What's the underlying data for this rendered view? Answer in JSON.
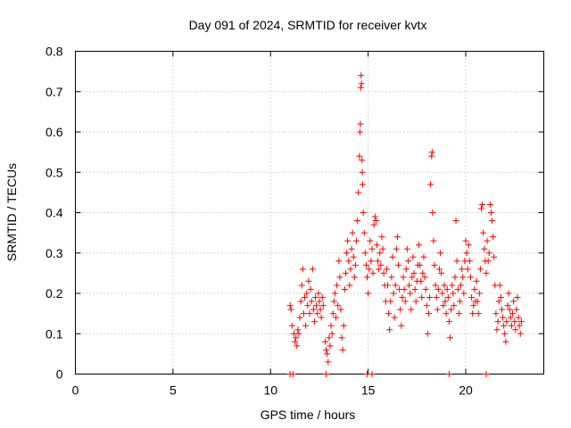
{
  "chart_data": {
    "type": "scatter",
    "title": "Day 091 of 2024, SRMTID for receiver kvtx",
    "xlabel": "GPS time / hours",
    "ylabel": "SRMTID / TECUs",
    "xlim": [
      0,
      24
    ],
    "ylim": [
      0,
      0.8
    ],
    "xticks": [
      0,
      5,
      10,
      15,
      20
    ],
    "yticks": [
      0,
      0.1,
      0.2,
      0.3,
      0.4,
      0.5,
      0.6,
      0.7,
      0.8
    ],
    "ytick_labels": [
      "0",
      "0.1",
      "0.2",
      "0.3",
      "0.4",
      "0.5",
      "0.6",
      "0.7",
      "0.8"
    ],
    "grid": true,
    "marker": "+",
    "marker_color": "#ff0000",
    "series": [
      {
        "name": "SRMTID",
        "points": [
          [
            11.0,
            0.17
          ],
          [
            11.05,
            0.16
          ],
          [
            11.1,
            0.12
          ],
          [
            11.2,
            0.1
          ],
          [
            11.25,
            0.08
          ],
          [
            11.3,
            0.09
          ],
          [
            11.35,
            0.07
          ],
          [
            11.4,
            0.11
          ],
          [
            11.45,
            0.1
          ],
          [
            11.5,
            0.14
          ],
          [
            11.55,
            0.18
          ],
          [
            11.6,
            0.22
          ],
          [
            11.65,
            0.26
          ],
          [
            11.7,
            0.15
          ],
          [
            11.75,
            0.19
          ],
          [
            11.8,
            0.12
          ],
          [
            11.85,
            0.2
          ],
          [
            11.9,
            0.17
          ],
          [
            11.95,
            0.23
          ],
          [
            12.0,
            0.15
          ],
          [
            12.05,
            0.21
          ],
          [
            12.1,
            0.18
          ],
          [
            12.15,
            0.26
          ],
          [
            12.2,
            0.16
          ],
          [
            12.25,
            0.13
          ],
          [
            12.3,
            0.19
          ],
          [
            12.35,
            0.17
          ],
          [
            12.4,
            0.15
          ],
          [
            12.45,
            0.2
          ],
          [
            12.5,
            0.18
          ],
          [
            12.55,
            0.16
          ],
          [
            12.6,
            0.14
          ],
          [
            12.65,
            0.19
          ],
          [
            12.7,
            0.17
          ],
          [
            12.8,
            0.08
          ],
          [
            12.85,
            0.06
          ],
          [
            12.9,
            0.05
          ],
          [
            12.95,
            0.03
          ],
          [
            13.0,
            0.09
          ],
          [
            13.05,
            0.07
          ],
          [
            13.1,
            0.12
          ],
          [
            13.15,
            0.1
          ],
          [
            13.2,
            0.15
          ],
          [
            13.25,
            0.18
          ],
          [
            13.3,
            0.2
          ],
          [
            13.35,
            0.14
          ],
          [
            13.4,
            0.22
          ],
          [
            13.45,
            0.17
          ],
          [
            13.5,
            0.28
          ],
          [
            13.55,
            0.24
          ],
          [
            13.6,
            0.16
          ],
          [
            13.65,
            0.09
          ],
          [
            13.7,
            0.06
          ],
          [
            13.75,
            0.12
          ],
          [
            13.8,
            0.21
          ],
          [
            13.85,
            0.25
          ],
          [
            13.9,
            0.3
          ],
          [
            13.95,
            0.33
          ],
          [
            14.0,
            0.28
          ],
          [
            14.05,
            0.22
          ],
          [
            14.1,
            0.26
          ],
          [
            14.15,
            0.31
          ],
          [
            14.2,
            0.35
          ],
          [
            14.25,
            0.29
          ],
          [
            14.3,
            0.24
          ],
          [
            14.35,
            0.27
          ],
          [
            14.4,
            0.33
          ],
          [
            14.45,
            0.38
          ],
          [
            14.5,
            0.45
          ],
          [
            14.55,
            0.54
          ],
          [
            14.58,
            0.6
          ],
          [
            14.6,
            0.62
          ],
          [
            14.62,
            0.71
          ],
          [
            14.64,
            0.74
          ],
          [
            14.66,
            0.72
          ],
          [
            14.68,
            0.53
          ],
          [
            14.7,
            0.5
          ],
          [
            14.72,
            0.47
          ],
          [
            14.75,
            0.4
          ],
          [
            14.8,
            0.35
          ],
          [
            14.85,
            0.3
          ],
          [
            14.9,
            0.27
          ],
          [
            14.95,
            0.24
          ],
          [
            15.0,
            0.2
          ],
          [
            15.05,
            0.26
          ],
          [
            15.1,
            0.33
          ],
          [
            15.15,
            0.28
          ],
          [
            15.2,
            0.31
          ],
          [
            15.25,
            0.25
          ],
          [
            15.3,
            0.37
          ],
          [
            15.35,
            0.39
          ],
          [
            15.4,
            0.38
          ],
          [
            15.45,
            0.32
          ],
          [
            15.5,
            0.28
          ],
          [
            15.55,
            0.26
          ],
          [
            15.6,
            0.3
          ],
          [
            15.65,
            0.27
          ],
          [
            15.7,
            0.34
          ],
          [
            15.75,
            0.31
          ],
          [
            15.8,
            0.25
          ],
          [
            15.85,
            0.22
          ],
          [
            15.9,
            0.18
          ],
          [
            15.95,
            0.26
          ],
          [
            16.0,
            0.22
          ],
          [
            16.05,
            0.15
          ],
          [
            16.1,
            0.11
          ],
          [
            16.15,
            0.18
          ],
          [
            16.2,
            0.24
          ],
          [
            16.25,
            0.29
          ],
          [
            16.3,
            0.2
          ],
          [
            16.35,
            0.14
          ],
          [
            16.4,
            0.22
          ],
          [
            16.45,
            0.31
          ],
          [
            16.5,
            0.34
          ],
          [
            16.55,
            0.27
          ],
          [
            16.6,
            0.21
          ],
          [
            16.65,
            0.16
          ],
          [
            16.7,
            0.12
          ],
          [
            16.75,
            0.19
          ],
          [
            16.8,
            0.24
          ],
          [
            16.85,
            0.21
          ],
          [
            16.9,
            0.18
          ],
          [
            16.95,
            0.26
          ],
          [
            17.0,
            0.31
          ],
          [
            17.05,
            0.28
          ],
          [
            17.1,
            0.22
          ],
          [
            17.15,
            0.2
          ],
          [
            17.2,
            0.16
          ],
          [
            17.25,
            0.24
          ],
          [
            17.3,
            0.29
          ],
          [
            17.35,
            0.25
          ],
          [
            17.4,
            0.21
          ],
          [
            17.45,
            0.18
          ],
          [
            17.5,
            0.23
          ],
          [
            17.55,
            0.27
          ],
          [
            17.6,
            0.32
          ],
          [
            17.65,
            0.27
          ],
          [
            17.7,
            0.23
          ],
          [
            17.75,
            0.19
          ],
          [
            17.8,
            0.25
          ],
          [
            17.85,
            0.29
          ],
          [
            17.9,
            0.24
          ],
          [
            17.95,
            0.21
          ],
          [
            18.0,
            0.17
          ],
          [
            18.05,
            0.1
          ],
          [
            18.1,
            0.15
          ],
          [
            18.15,
            0.19
          ],
          [
            18.2,
            0.47
          ],
          [
            18.25,
            0.54
          ],
          [
            18.28,
            0.55
          ],
          [
            18.3,
            0.4
          ],
          [
            18.35,
            0.33
          ],
          [
            18.4,
            0.27
          ],
          [
            18.45,
            0.22
          ],
          [
            18.5,
            0.19
          ],
          [
            18.55,
            0.16
          ],
          [
            18.6,
            0.21
          ],
          [
            18.65,
            0.26
          ],
          [
            18.7,
            0.3
          ],
          [
            18.75,
            0.25
          ],
          [
            18.8,
            0.2
          ],
          [
            18.85,
            0.17
          ],
          [
            18.9,
            0.22
          ],
          [
            18.95,
            0.18
          ],
          [
            19.0,
            0.15
          ],
          [
            19.05,
            0.21
          ],
          [
            19.1,
            0.19
          ],
          [
            19.15,
            0.13
          ],
          [
            19.2,
            0.09
          ],
          [
            19.25,
            0.16
          ],
          [
            19.3,
            0.22
          ],
          [
            19.35,
            0.2
          ],
          [
            19.4,
            0.17
          ],
          [
            19.45,
            0.24
          ],
          [
            19.5,
            0.38
          ],
          [
            19.55,
            0.28
          ],
          [
            19.6,
            0.21
          ],
          [
            19.65,
            0.15
          ],
          [
            19.7,
            0.18
          ],
          [
            19.75,
            0.22
          ],
          [
            19.8,
            0.26
          ],
          [
            19.85,
            0.24
          ],
          [
            19.9,
            0.2
          ],
          [
            19.95,
            0.28
          ],
          [
            20.0,
            0.33
          ],
          [
            20.05,
            0.3
          ],
          [
            20.1,
            0.26
          ],
          [
            20.15,
            0.32
          ],
          [
            20.2,
            0.28
          ],
          [
            20.25,
            0.24
          ],
          [
            20.3,
            0.19
          ],
          [
            20.35,
            0.15
          ],
          [
            20.4,
            0.17
          ],
          [
            20.45,
            0.21
          ],
          [
            20.5,
            0.18
          ],
          [
            20.55,
            0.23
          ],
          [
            20.6,
            0.18
          ],
          [
            20.65,
            0.15
          ],
          [
            20.7,
            0.2
          ],
          [
            20.75,
            0.26
          ],
          [
            20.8,
            0.41
          ],
          [
            20.85,
            0.42
          ],
          [
            20.9,
            0.35
          ],
          [
            20.95,
            0.31
          ],
          [
            21.0,
            0.28
          ],
          [
            21.05,
            0.25
          ],
          [
            21.1,
            0.33
          ],
          [
            21.15,
            0.28
          ],
          [
            21.2,
            0.3
          ],
          [
            21.25,
            0.42
          ],
          [
            21.3,
            0.4
          ],
          [
            21.35,
            0.38
          ],
          [
            21.4,
            0.34
          ],
          [
            21.45,
            0.29
          ],
          [
            21.5,
            0.22
          ],
          [
            21.55,
            0.15
          ],
          [
            21.6,
            0.11
          ],
          [
            21.65,
            0.13
          ],
          [
            21.7,
            0.18
          ],
          [
            21.75,
            0.22
          ],
          [
            21.8,
            0.19
          ],
          [
            21.85,
            0.16
          ],
          [
            21.9,
            0.14
          ],
          [
            21.95,
            0.12
          ],
          [
            22.0,
            0.1
          ],
          [
            22.05,
            0.08
          ],
          [
            22.1,
            0.13
          ],
          [
            22.15,
            0.17
          ],
          [
            22.2,
            0.2
          ],
          [
            22.25,
            0.16
          ],
          [
            22.3,
            0.14
          ],
          [
            22.35,
            0.12
          ],
          [
            22.4,
            0.15
          ],
          [
            22.45,
            0.18
          ],
          [
            22.5,
            0.13
          ],
          [
            22.55,
            0.11
          ],
          [
            22.6,
            0.16
          ],
          [
            22.65,
            0.19
          ],
          [
            22.7,
            0.14
          ],
          [
            22.75,
            0.12
          ],
          [
            22.8,
            0.1
          ],
          [
            22.85,
            0.13
          ]
        ],
        "zero_points": [
          11.0,
          11.15,
          12.85,
          14.95,
          15.2,
          19.15,
          21.05
        ]
      }
    ]
  }
}
